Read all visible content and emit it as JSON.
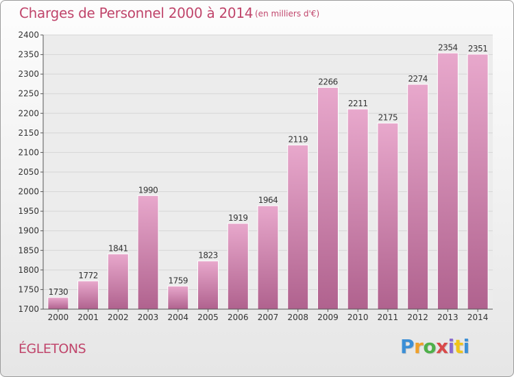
{
  "header": {
    "title": "Charges de Personnel 2000 à 2014",
    "unit_note": "(en milliers d'€)"
  },
  "footer": {
    "commune": "ÉGLETONS",
    "logo_letters": [
      "P",
      "r",
      "o",
      "x",
      "i",
      "t",
      "i"
    ]
  },
  "colors": {
    "title": "#c0456b",
    "bar_top": "#e8a8cc",
    "bar_bottom": "#b0628e",
    "grid": "#d5d5d5",
    "axis": "#555555"
  },
  "chart_data": {
    "type": "bar",
    "title": "Charges de Personnel 2000 à 2014",
    "subtitle": "(en milliers d'€)",
    "categories": [
      "2000",
      "2001",
      "2002",
      "2003",
      "2004",
      "2005",
      "2006",
      "2007",
      "2008",
      "2009",
      "2010",
      "2011",
      "2012",
      "2013",
      "2014"
    ],
    "values": [
      1730,
      1772,
      1841,
      1990,
      1759,
      1823,
      1919,
      1964,
      2119,
      2266,
      2211,
      2175,
      2274,
      2354,
      2351
    ],
    "ylim": [
      1700,
      2400
    ],
    "yticks": [
      1700,
      1750,
      1800,
      1850,
      1900,
      1950,
      2000,
      2050,
      2100,
      2150,
      2200,
      2250,
      2300,
      2350,
      2400
    ],
    "grid": true,
    "data_labels": true,
    "xlabel": "",
    "ylabel": ""
  }
}
